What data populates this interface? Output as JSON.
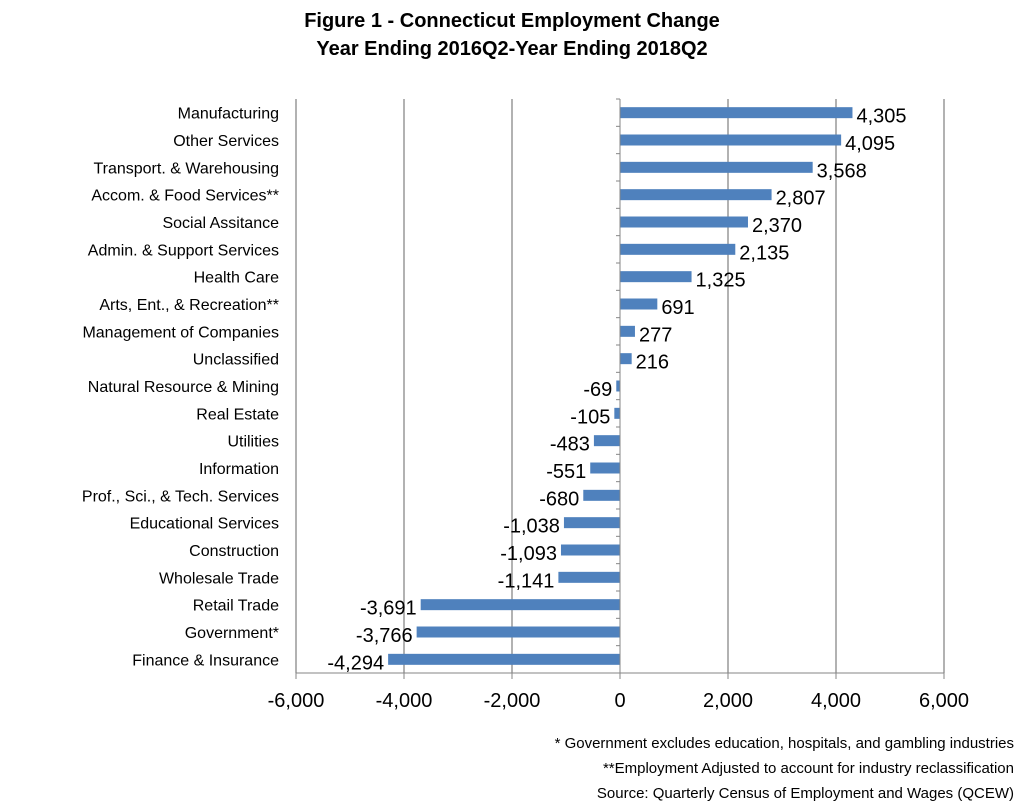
{
  "chart_data": {
    "type": "bar",
    "orientation": "horizontal",
    "title": "Figure 1 - Connecticut Employment Change",
    "subtitle": "Year Ending 2016Q2-Year Ending 2018Q2",
    "xlabel": "",
    "ylabel": "",
    "xlim": [
      -6000,
      6000
    ],
    "xticks": [
      -6000,
      -4000,
      -2000,
      0,
      2000,
      4000,
      6000
    ],
    "xtick_labels": [
      "-6,000",
      "-4,000",
      "-2,000",
      "0",
      "2,000",
      "4,000",
      "6,000"
    ],
    "grid": "vertical",
    "legend": "none",
    "categories": [
      "Manufacturing",
      "Other Services",
      "Transport. & Warehousing",
      "Accom. & Food Services**",
      "Social Assitance",
      "Admin. & Support Services",
      "Health Care",
      "Arts, Ent., & Recreation**",
      "Management of Companies",
      "Unclassified",
      "Natural Resource & Mining",
      "Real Estate",
      "Utilities",
      "Information",
      "Prof., Sci., & Tech. Services",
      "Educational Services",
      "Construction",
      "Wholesale Trade",
      "Retail Trade",
      "Government*",
      "Finance & Insurance"
    ],
    "values": [
      4305,
      4095,
      3568,
      2807,
      2370,
      2135,
      1325,
      691,
      277,
      216,
      -69,
      -105,
      -483,
      -551,
      -680,
      -1038,
      -1093,
      -1141,
      -3691,
      -3766,
      -4294
    ],
    "value_labels": [
      "4,305",
      "4,095",
      "3,568",
      "2,807",
      "2,370",
      "2,135",
      "1,325",
      "691",
      "277",
      "216",
      "-69",
      "-105",
      "-483",
      "-551",
      "-680",
      "-1,038",
      "-1,093",
      "-1,141",
      "-3,691",
      "-3,766",
      "-4,294"
    ],
    "bar_color": "#4f81bd",
    "grid_color": "#999999",
    "axis_color": "#868686"
  },
  "footnotes": [
    "* Government excludes education, hospitals, and gambling industries",
    "**Employment Adjusted to account for industry reclassification",
    "Source: Quarterly Census of Employment and Wages (QCEW)"
  ]
}
